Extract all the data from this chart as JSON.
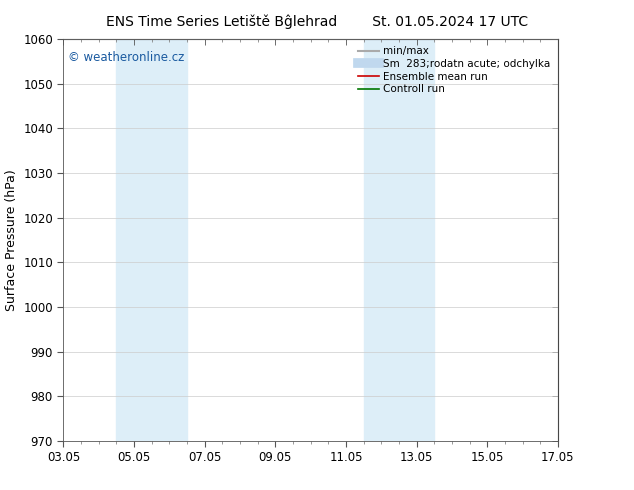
{
  "title_left": "ENS Time Series Letiště Bĝlehrad",
  "title_right": "St. 01.05.2024 17 UTC",
  "ylabel": "Surface Pressure (hPa)",
  "ylim": [
    970,
    1060
  ],
  "yticks": [
    970,
    980,
    990,
    1000,
    1010,
    1020,
    1030,
    1040,
    1050,
    1060
  ],
  "xlim": [
    0,
    14
  ],
  "xtick_labels": [
    "03.05",
    "05.05",
    "07.05",
    "09.05",
    "11.05",
    "13.05",
    "15.05",
    "17.05"
  ],
  "xtick_positions": [
    0,
    2,
    4,
    6,
    8,
    10,
    12,
    14
  ],
  "background_color": "#ffffff",
  "plot_bg_color": "#ffffff",
  "shade_regions": [
    {
      "x_start": 1.5,
      "x_end": 3.5,
      "color": "#ddeef8"
    },
    {
      "x_start": 8.5,
      "x_end": 10.5,
      "color": "#ddeef8"
    }
  ],
  "watermark_text": "© weatheronline.cz",
  "watermark_color": "#1a5aa0",
  "legend_entries": [
    {
      "label": "min/max",
      "color": "#aaaaaa",
      "linestyle": "-",
      "linewidth": 1.5
    },
    {
      "label": "Sm  283;rodatn acute; odchylka",
      "color": "#c0d8ee",
      "linestyle": "-",
      "linewidth": 7
    },
    {
      "label": "Ensemble mean run",
      "color": "#cc0000",
      "linestyle": "-",
      "linewidth": 1.2
    },
    {
      "label": "Controll run",
      "color": "#007700",
      "linestyle": "-",
      "linewidth": 1.2
    }
  ],
  "title_fontsize": 10,
  "axis_label_fontsize": 9,
  "tick_fontsize": 8.5,
  "legend_fontsize": 7.5
}
